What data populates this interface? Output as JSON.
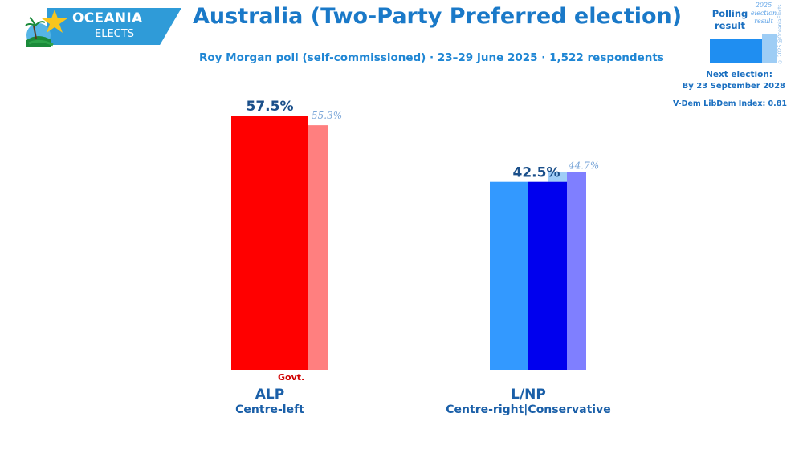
{
  "logo": {
    "title": "OCEANIA",
    "subtitle": "ELECTS"
  },
  "header": {
    "title": "Australia (Two-Party Preferred election)",
    "subtitle": "Roy Morgan poll (self-commissioned) · 23–29 June 2025 · 1,522 respondents"
  },
  "legend": {
    "polling": "Polling result",
    "election": "2025 election result",
    "copyright": "© 2025 @OceaniaElects"
  },
  "info": {
    "next_election_label": "Next election:",
    "next_election_date": "By 23 September 2028",
    "vdem": "V-Dem LibDem Index: 0.81"
  },
  "colors": {
    "alp_poll": "#ff0000",
    "alp_election": "#ff7f7f",
    "lnp_poll_a": "#3399ff",
    "lnp_poll_b": "#0000ee",
    "lnp_election_a": "#9fcdf7",
    "lnp_election_b": "#7f7fff",
    "title": "#1a79c8",
    "value_text": "#1a4f8a",
    "election_text": "#7aa6d8",
    "govt": "#d00000"
  },
  "chart_data": {
    "type": "bar",
    "title": "Australia (Two-Party Preferred election)",
    "categories": [
      "ALP",
      "L/NP"
    ],
    "descriptions": [
      "Centre-left",
      "Centre-right|Conservative"
    ],
    "series": [
      {
        "name": "Polling result",
        "values": [
          57.5,
          42.5
        ]
      },
      {
        "name": "2025 election result",
        "values": [
          55.3,
          44.7
        ]
      }
    ],
    "labels_poll": [
      "57.5%",
      "42.5%"
    ],
    "labels_election": [
      "55.3%",
      "44.7%"
    ],
    "govt_label": "Govt.",
    "ylim": [
      0,
      57.5
    ],
    "grid": false
  }
}
